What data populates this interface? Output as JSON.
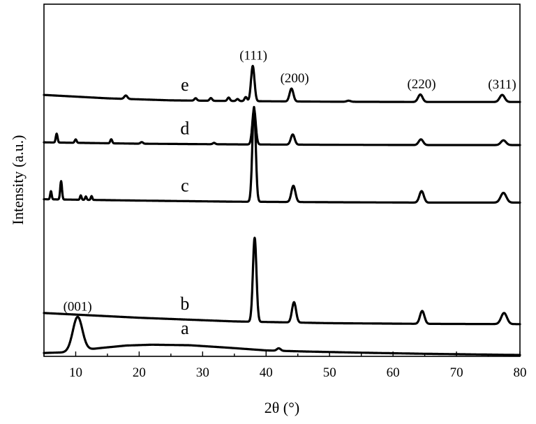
{
  "chart_data": {
    "type": "line",
    "title": "",
    "xlabel": "2θ (°)",
    "ylabel": "Intensity (a.u.)",
    "xlim": [
      5,
      80
    ],
    "x_ticks": [
      10,
      20,
      30,
      40,
      50,
      60,
      70,
      80
    ],
    "x_tick_labels": [
      "10",
      "20",
      "30",
      "40",
      "50",
      "60",
      "70",
      "80"
    ],
    "y_ticks": "none",
    "grid": false,
    "legend": "none",
    "series": [
      {
        "label": "a",
        "baseline": [
          [
            5,
            0.25
          ],
          [
            8,
            0.29
          ],
          [
            14,
            0.62
          ],
          [
            18,
            0.8
          ],
          [
            22,
            0.86
          ],
          [
            28,
            0.82
          ],
          [
            34,
            0.64
          ],
          [
            40,
            0.44
          ],
          [
            46,
            0.36
          ],
          [
            55,
            0.27
          ],
          [
            65,
            0.19
          ],
          [
            80,
            0.1
          ]
        ],
        "peaks": [
          [
            10.3,
            2.5,
            0.75
          ],
          [
            42.0,
            0.18,
            0.3
          ]
        ]
      },
      {
        "label": "b",
        "baseline": [
          [
            5,
            3.2
          ],
          [
            20,
            2.85
          ],
          [
            35,
            2.58
          ],
          [
            50,
            2.45
          ],
          [
            65,
            2.4
          ],
          [
            80,
            2.38
          ]
        ],
        "peaks": [
          [
            38.2,
            6.2,
            0.28
          ],
          [
            44.4,
            1.5,
            0.32
          ],
          [
            64.6,
            0.95,
            0.35
          ],
          [
            77.5,
            0.82,
            0.45
          ]
        ]
      },
      {
        "label": "c",
        "baseline": [
          [
            5,
            11.6
          ],
          [
            20,
            11.5
          ],
          [
            35,
            11.42
          ],
          [
            50,
            11.38
          ],
          [
            65,
            11.35
          ],
          [
            80,
            11.35
          ]
        ],
        "peaks": [
          [
            6.1,
            0.6,
            0.12
          ],
          [
            7.7,
            1.35,
            0.14
          ],
          [
            10.8,
            0.32,
            0.12
          ],
          [
            11.6,
            0.25,
            0.12
          ],
          [
            12.5,
            0.28,
            0.12
          ],
          [
            38.1,
            7.0,
            0.27
          ],
          [
            44.3,
            1.2,
            0.32
          ],
          [
            64.5,
            0.85,
            0.35
          ],
          [
            77.4,
            0.72,
            0.45
          ]
        ]
      },
      {
        "label": "d",
        "baseline": [
          [
            5,
            15.8
          ],
          [
            20,
            15.7
          ],
          [
            35,
            15.65
          ],
          [
            50,
            15.62
          ],
          [
            65,
            15.6
          ],
          [
            80,
            15.6
          ]
        ],
        "peaks": [
          [
            7.0,
            0.65,
            0.14
          ],
          [
            10.0,
            0.25,
            0.15
          ],
          [
            15.6,
            0.3,
            0.15
          ],
          [
            20.4,
            0.12,
            0.2
          ],
          [
            31.8,
            0.1,
            0.2
          ],
          [
            38.1,
            2.6,
            0.27
          ],
          [
            44.2,
            0.75,
            0.3
          ],
          [
            64.4,
            0.42,
            0.35
          ],
          [
            77.4,
            0.35,
            0.4
          ]
        ]
      },
      {
        "label": "e",
        "baseline": [
          [
            5,
            19.3
          ],
          [
            15,
            19.05
          ],
          [
            25,
            18.9
          ],
          [
            35,
            18.85
          ],
          [
            50,
            18.8
          ],
          [
            65,
            18.78
          ],
          [
            80,
            18.78
          ]
        ],
        "peaks": [
          [
            17.9,
            0.25,
            0.25
          ],
          [
            28.9,
            0.18,
            0.2
          ],
          [
            31.3,
            0.2,
            0.2
          ],
          [
            34.1,
            0.25,
            0.2
          ],
          [
            35.5,
            0.15,
            0.2
          ],
          [
            36.8,
            0.3,
            0.2
          ],
          [
            37.9,
            2.6,
            0.27
          ],
          [
            44.0,
            0.95,
            0.3
          ],
          [
            53.0,
            0.08,
            0.3
          ],
          [
            64.3,
            0.55,
            0.35
          ],
          [
            77.2,
            0.52,
            0.4
          ]
        ]
      }
    ],
    "annotations": [
      {
        "text": "(001)",
        "x": 10.3,
        "series": "a"
      },
      {
        "text": "(111)",
        "x": 38.0,
        "series": "e"
      },
      {
        "text": "(200)",
        "x": 44.5,
        "series": "e"
      },
      {
        "text": "(220)",
        "x": 64.5,
        "series": "e"
      },
      {
        "text": "(311)",
        "x": 77.2,
        "series": "e"
      }
    ]
  }
}
